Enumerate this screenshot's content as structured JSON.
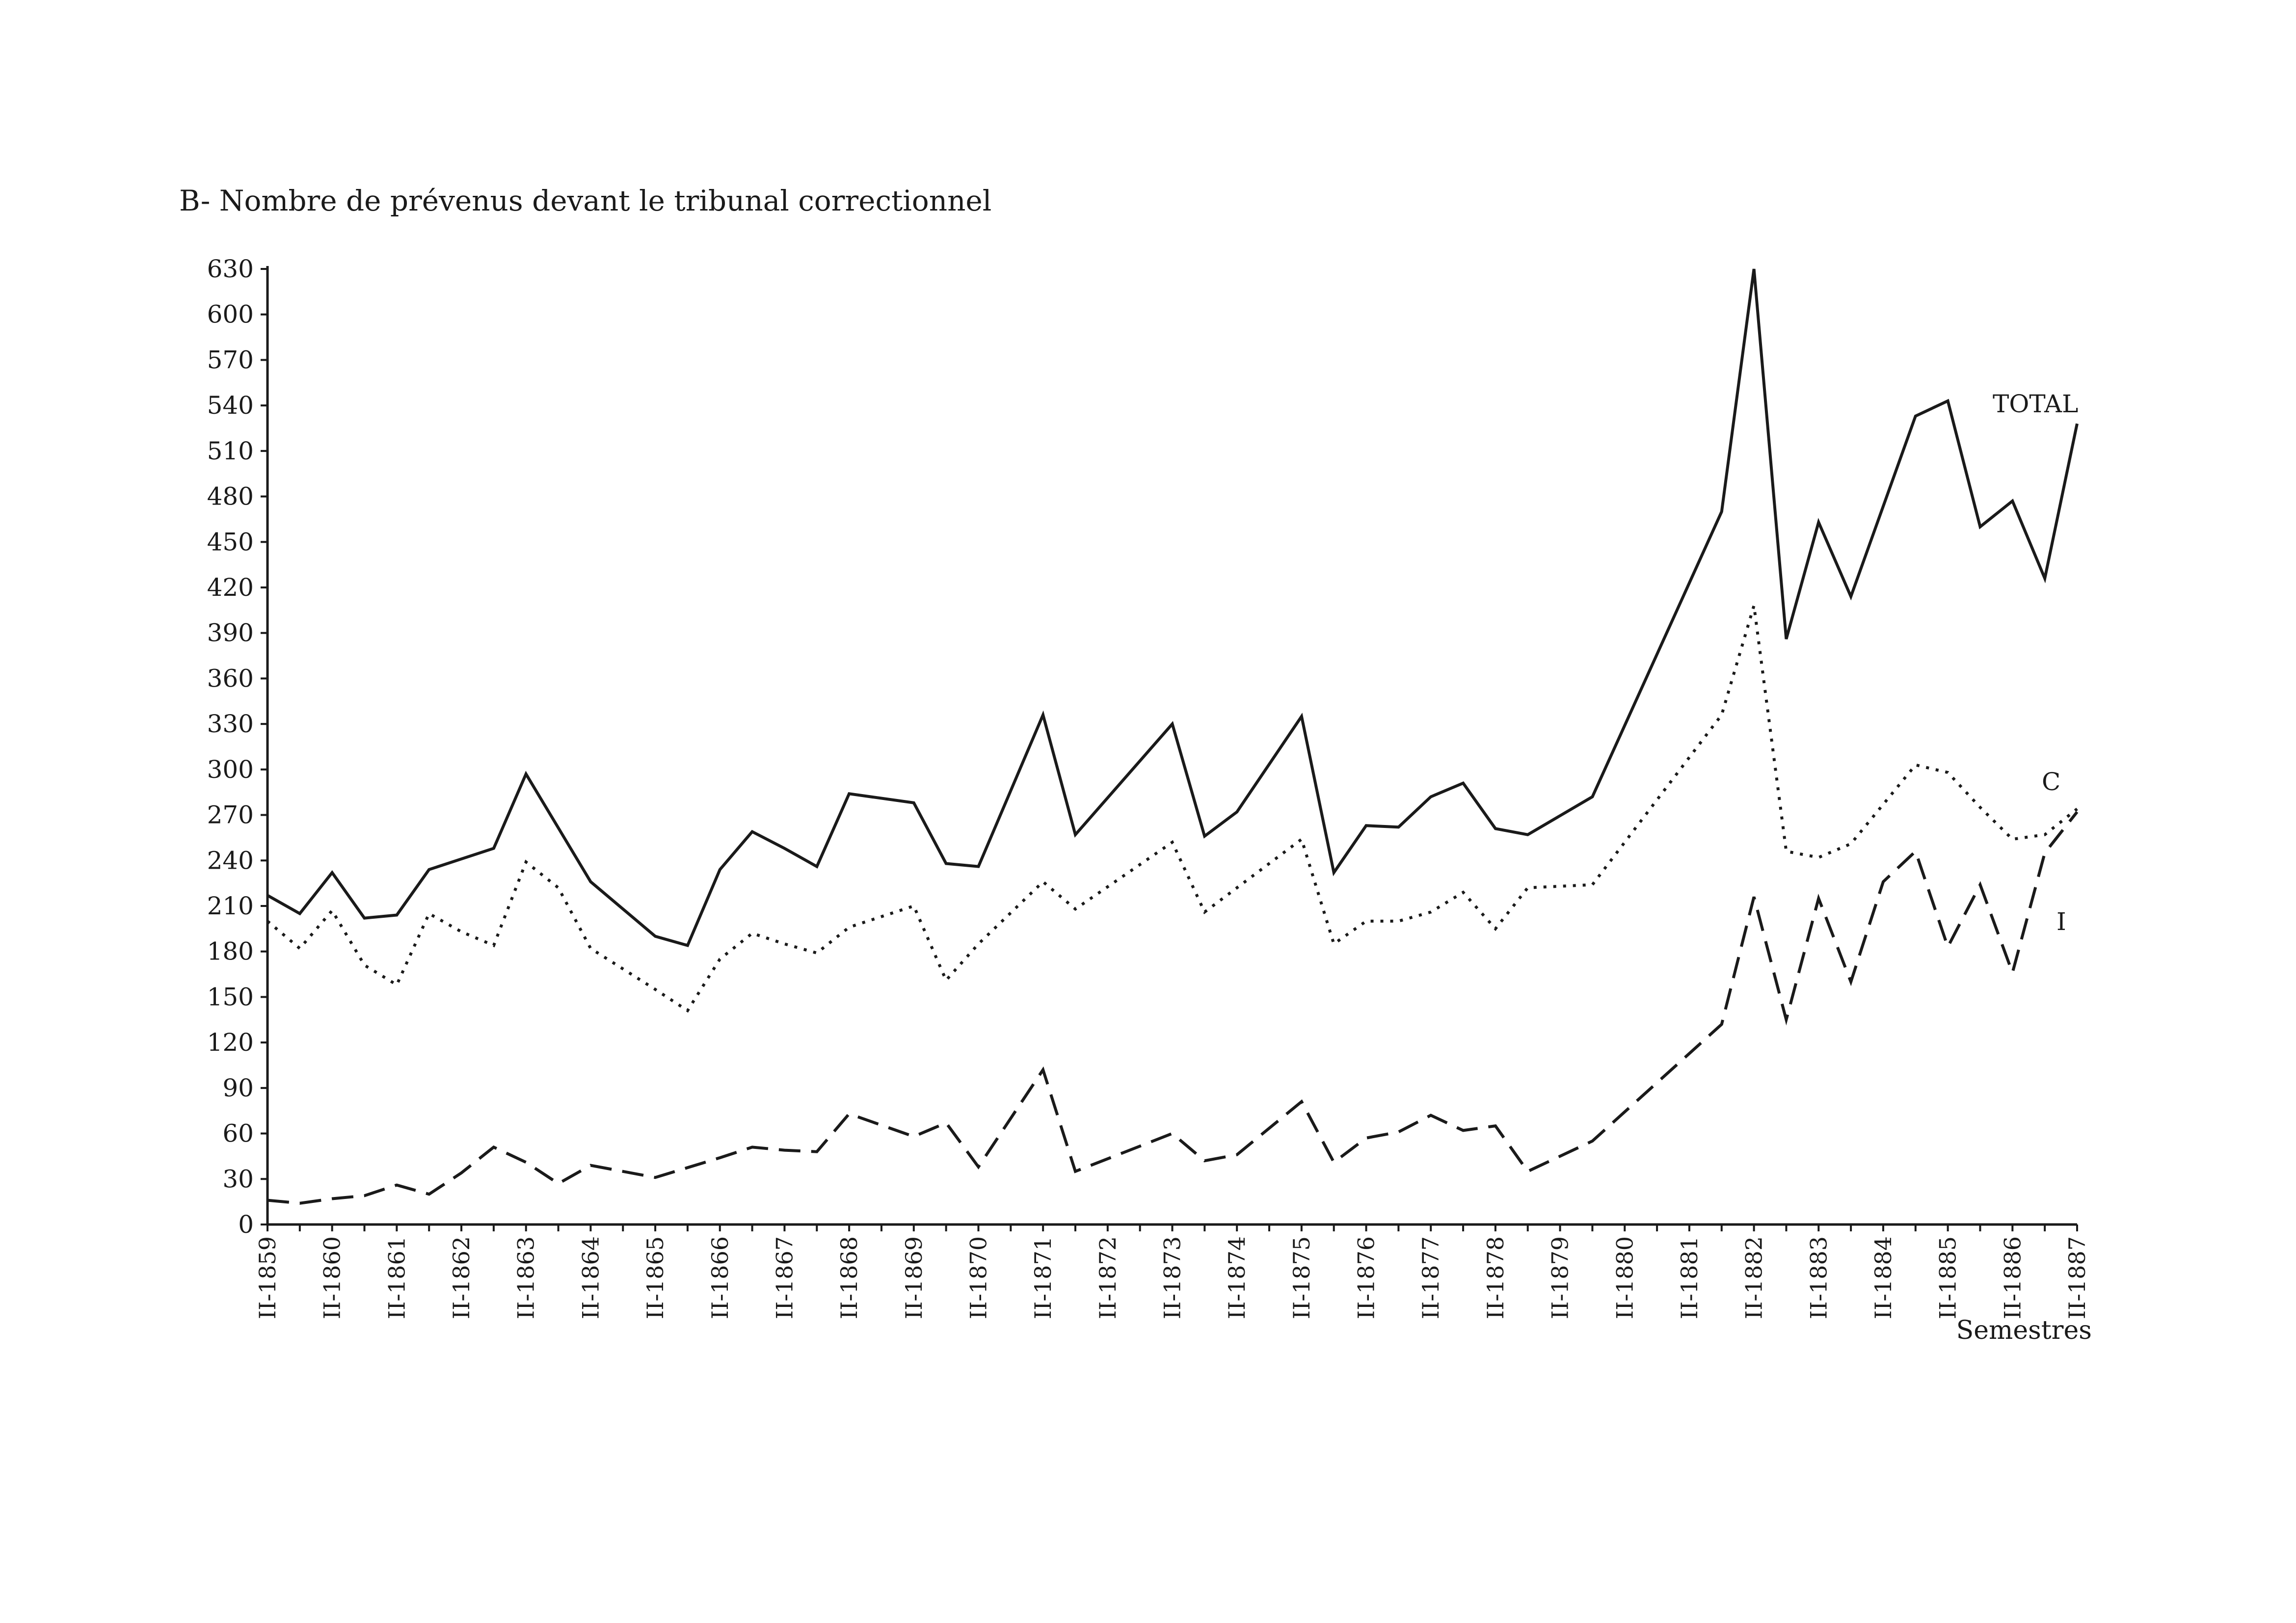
{
  "chart_data": {
    "type": "line",
    "title": "B- Nombre de prévenus devant le tribunal correctionnel",
    "xlabel": "Semestres",
    "ylabel": "",
    "ylim": [
      0,
      630
    ],
    "yticks": [
      0,
      30,
      60,
      90,
      120,
      150,
      180,
      210,
      240,
      270,
      300,
      330,
      360,
      390,
      420,
      450,
      480,
      510,
      540,
      570,
      600,
      630
    ],
    "x_labels": [
      "II-1859",
      "II-1860",
      "II-1861",
      "II-1862",
      "II-1863",
      "II-1864",
      "II-1865",
      "II-1866",
      "II-1867",
      "II-1868",
      "II-1869",
      "II-1870",
      "II-1871",
      "II-1872",
      "II-1873",
      "II-1874",
      "II-1875",
      "II-1876",
      "II-1877",
      "II-1878",
      "II-1879",
      "II-1880",
      "II-1881",
      "II-1882",
      "II-1883",
      "II-1884",
      "II-1885",
      "II-1886",
      "II-1887"
    ],
    "grid": false,
    "legend": "inline labels at right",
    "series": [
      {
        "name": "TOTAL",
        "style": "solid",
        "points": [
          [
            0,
            217
          ],
          [
            0.5,
            205
          ],
          [
            1,
            232
          ],
          [
            1.5,
            202
          ],
          [
            2,
            204
          ],
          [
            2.5,
            234
          ],
          [
            3,
            241
          ],
          [
            3.5,
            248
          ],
          [
            4,
            297
          ],
          [
            5,
            226
          ],
          [
            6,
            190
          ],
          [
            6.5,
            184
          ],
          [
            7,
            234
          ],
          [
            7.5,
            259
          ],
          [
            8,
            248
          ],
          [
            8.5,
            236
          ],
          [
            9,
            284
          ],
          [
            10,
            278
          ],
          [
            10.5,
            238
          ],
          [
            11,
            236
          ],
          [
            12,
            336
          ],
          [
            12.5,
            257
          ],
          [
            14,
            330
          ],
          [
            14.5,
            256
          ],
          [
            15,
            272
          ],
          [
            16,
            335
          ],
          [
            16.5,
            232
          ],
          [
            17,
            263
          ],
          [
            17.5,
            262
          ],
          [
            18,
            282
          ],
          [
            18.5,
            291
          ],
          [
            19,
            261
          ],
          [
            19.5,
            257
          ],
          [
            20.5,
            282
          ],
          [
            22.5,
            470
          ],
          [
            23,
            630
          ],
          [
            23.5,
            386
          ],
          [
            24,
            463
          ],
          [
            24.5,
            414
          ],
          [
            25.5,
            533
          ],
          [
            26,
            543
          ],
          [
            26.5,
            460
          ],
          [
            27,
            477
          ],
          [
            27.5,
            426
          ],
          [
            28,
            528
          ]
        ]
      },
      {
        "name": "C",
        "style": "dotted",
        "points": [
          [
            0,
            200
          ],
          [
            0.5,
            182
          ],
          [
            1,
            207
          ],
          [
            1.5,
            171
          ],
          [
            2,
            158
          ],
          [
            2.5,
            205
          ],
          [
            3,
            193
          ],
          [
            3.5,
            184
          ],
          [
            4,
            239
          ],
          [
            4.5,
            222
          ],
          [
            5,
            182
          ],
          [
            6,
            155
          ],
          [
            6.5,
            141
          ],
          [
            7,
            175
          ],
          [
            7.5,
            192
          ],
          [
            8,
            185
          ],
          [
            8.5,
            179
          ],
          [
            9,
            196
          ],
          [
            10,
            210
          ],
          [
            10.5,
            161
          ],
          [
            11,
            185
          ],
          [
            12,
            226
          ],
          [
            12.5,
            208
          ],
          [
            14,
            252
          ],
          [
            14.5,
            206
          ],
          [
            16,
            254
          ],
          [
            16.5,
            185
          ],
          [
            17,
            200
          ],
          [
            17.5,
            200
          ],
          [
            18,
            206
          ],
          [
            18.5,
            219
          ],
          [
            19,
            195
          ],
          [
            19.5,
            222
          ],
          [
            20.5,
            224
          ],
          [
            22.5,
            336
          ],
          [
            23,
            408
          ],
          [
            23.5,
            246
          ],
          [
            24,
            242
          ],
          [
            24.5,
            251
          ],
          [
            25.5,
            303
          ],
          [
            26,
            298
          ],
          [
            26.5,
            275
          ],
          [
            27,
            254
          ],
          [
            27.5,
            257
          ],
          [
            28,
            274
          ]
        ]
      },
      {
        "name": "I",
        "style": "dashed",
        "points": [
          [
            0,
            16
          ],
          [
            0.5,
            14
          ],
          [
            1,
            17
          ],
          [
            1.5,
            19
          ],
          [
            2,
            26
          ],
          [
            2.5,
            20
          ],
          [
            3,
            34
          ],
          [
            3.5,
            51
          ],
          [
            4,
            41
          ],
          [
            4.5,
            27
          ],
          [
            5,
            39
          ],
          [
            6,
            31
          ],
          [
            7,
            44
          ],
          [
            7.5,
            51
          ],
          [
            8,
            49
          ],
          [
            8.5,
            48
          ],
          [
            9,
            73
          ],
          [
            10,
            58
          ],
          [
            10.5,
            67
          ],
          [
            11,
            38
          ],
          [
            12,
            102
          ],
          [
            12.5,
            35
          ],
          [
            14,
            60
          ],
          [
            14.5,
            42
          ],
          [
            15,
            46
          ],
          [
            16,
            81
          ],
          [
            16.5,
            41
          ],
          [
            17,
            57
          ],
          [
            17.5,
            61
          ],
          [
            18,
            72
          ],
          [
            18.5,
            62
          ],
          [
            19,
            65
          ],
          [
            19.5,
            35
          ],
          [
            20.5,
            55
          ],
          [
            22.5,
            132
          ],
          [
            23,
            216
          ],
          [
            23.5,
            135
          ],
          [
            24,
            215
          ],
          [
            24.5,
            160
          ],
          [
            25,
            226
          ],
          [
            25.5,
            246
          ],
          [
            26,
            183
          ],
          [
            26.5,
            224
          ],
          [
            27,
            166
          ],
          [
            27.5,
            245
          ],
          [
            28,
            272
          ]
        ]
      }
    ]
  }
}
